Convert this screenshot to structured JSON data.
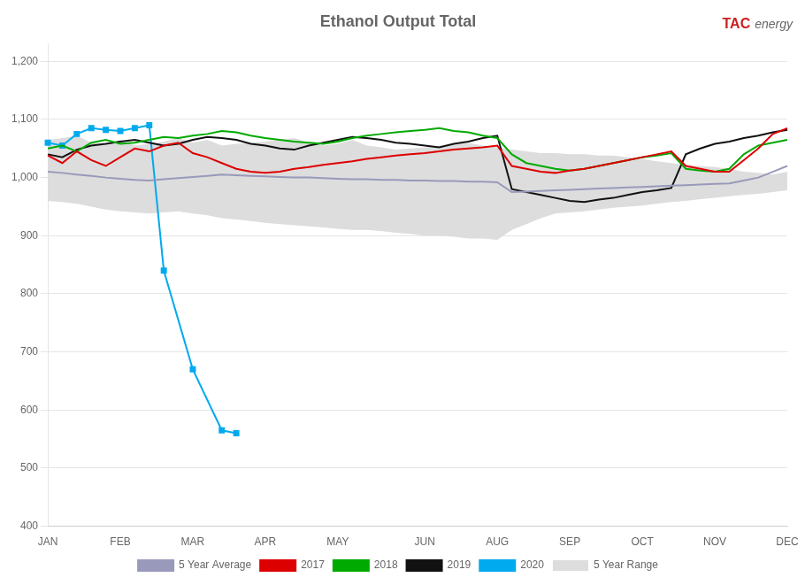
{
  "chart_data": {
    "type": "line",
    "title": "Ethanol Output Total",
    "annotations": [
      {
        "text": "TAC",
        "color": "#cc2222"
      },
      {
        "text": "energy"
      }
    ],
    "categories": [
      "JAN",
      null,
      null,
      null,
      null,
      "FEB",
      null,
      null,
      null,
      null,
      "MAR",
      null,
      null,
      null,
      null,
      "APR",
      null,
      null,
      null,
      null,
      "MAY",
      null,
      null,
      null,
      null,
      null,
      "JUN",
      null,
      null,
      null,
      null,
      "AUG",
      null,
      null,
      null,
      null,
      "SEP",
      null,
      null,
      null,
      null,
      "OCT",
      null,
      null,
      null,
      null,
      "NOV",
      null,
      null,
      null,
      null,
      "DEC"
    ],
    "series": [
      {
        "name": "5 Year Range",
        "type": "range",
        "color": "#dddddd",
        "lower": [
          960,
          958,
          955,
          950,
          945,
          942,
          940,
          938,
          940,
          942,
          938,
          935,
          930,
          928,
          925,
          922,
          920,
          918,
          916,
          914,
          912,
          910,
          910,
          908,
          905,
          903,
          900,
          900,
          898,
          895,
          895,
          893,
          910,
          920,
          930,
          938,
          940,
          942,
          945,
          948,
          950,
          952,
          955,
          958,
          960,
          963,
          965,
          968,
          970,
          972,
          975,
          978
        ],
        "upper": [
          1065,
          1068,
          1072,
          1060,
          1058,
          1065,
          1055,
          1058,
          1062,
          1068,
          1060,
          1065,
          1055,
          1058,
          1060,
          1062,
          1065,
          1068,
          1060,
          1055,
          1058,
          1065,
          1055,
          1052,
          1048,
          1050,
          1052,
          1055,
          1058,
          1060,
          1055,
          1052,
          1048,
          1045,
          1042,
          1042,
          1040,
          1040,
          1038,
          1038,
          1035,
          1032,
          1028,
          1025,
          1022,
          1020,
          1018,
          1015,
          1010,
          1008,
          1005,
          1010
        ]
      },
      {
        "name": "5 Year Average",
        "color": "#9999bb",
        "values": [
          1010,
          1008,
          1005,
          1003,
          1000,
          998,
          996,
          995,
          997,
          999,
          1001,
          1003,
          1005,
          1004,
          1003,
          1002,
          1001,
          1000,
          1000,
          999,
          998,
          997,
          997,
          996,
          996,
          995,
          995,
          994,
          994,
          993,
          993,
          992,
          975,
          976,
          977,
          978,
          979,
          980,
          981,
          982,
          983,
          984,
          985,
          986,
          987,
          988,
          989,
          990,
          995,
          1000,
          1010,
          1020
        ]
      },
      {
        "name": "2017",
        "color": "#dd0000",
        "values": [
          1038,
          1025,
          1045,
          1030,
          1020,
          1035,
          1050,
          1045,
          1055,
          1060,
          1042,
          1035,
          1025,
          1015,
          1010,
          1008,
          1010,
          1015,
          1018,
          1022,
          1025,
          1028,
          1032,
          1035,
          1038,
          1040,
          1042,
          1045,
          1048,
          1050,
          1052,
          1055,
          1020,
          1015,
          1010,
          1008,
          1012,
          1015,
          1020,
          1025,
          1030,
          1035,
          1040,
          1045,
          1020,
          1015,
          1010,
          1010,
          1030,
          1050,
          1075,
          1085
        ]
      },
      {
        "name": "2018",
        "color": "#00aa00",
        "values": [
          1050,
          1055,
          1045,
          1060,
          1065,
          1058,
          1060,
          1065,
          1070,
          1068,
          1072,
          1075,
          1080,
          1078,
          1072,
          1068,
          1065,
          1062,
          1060,
          1058,
          1062,
          1068,
          1072,
          1075,
          1078,
          1080,
          1082,
          1085,
          1080,
          1078,
          1072,
          1068,
          1040,
          1025,
          1020,
          1015,
          1012,
          1015,
          1020,
          1025,
          1030,
          1035,
          1038,
          1042,
          1015,
          1012,
          1010,
          1015,
          1040,
          1055,
          1060,
          1065
        ]
      },
      {
        "name": "2019",
        "color": "#111111",
        "values": [
          1040,
          1035,
          1048,
          1055,
          1058,
          1062,
          1065,
          1060,
          1055,
          1058,
          1065,
          1070,
          1068,
          1065,
          1058,
          1055,
          1050,
          1048,
          1055,
          1060,
          1065,
          1070,
          1068,
          1065,
          1060,
          1058,
          1055,
          1052,
          1058,
          1062,
          1068,
          1072,
          980,
          975,
          970,
          965,
          960,
          958,
          962,
          965,
          970,
          975,
          978,
          982,
          1040,
          1050,
          1058,
          1062,
          1068,
          1072,
          1078,
          1082
        ]
      },
      {
        "name": "2020",
        "color": "#00aaee",
        "marker": "square",
        "values": [
          1060,
          1055,
          1075,
          1085,
          1082,
          1080,
          1085,
          1090,
          840,
          null,
          670,
          null,
          565,
          560,
          null,
          null,
          null,
          null,
          null,
          null,
          null,
          null,
          null,
          null,
          null,
          null,
          null,
          null,
          null,
          null,
          null,
          null,
          null,
          null,
          null,
          null,
          null,
          null,
          null,
          null,
          null,
          null,
          null,
          null,
          null,
          null,
          null,
          null,
          null,
          null,
          null,
          null
        ]
      }
    ],
    "ylim": [
      400,
      1230
    ],
    "yticks": [
      400,
      500,
      600,
      700,
      800,
      900,
      {
        "value": 1000,
        "label": "1,000"
      },
      {
        "value": 1100,
        "label": "1,100"
      },
      {
        "value": 1200,
        "label": "1,200"
      }
    ],
    "grid": "y",
    "legend": "bottom"
  }
}
